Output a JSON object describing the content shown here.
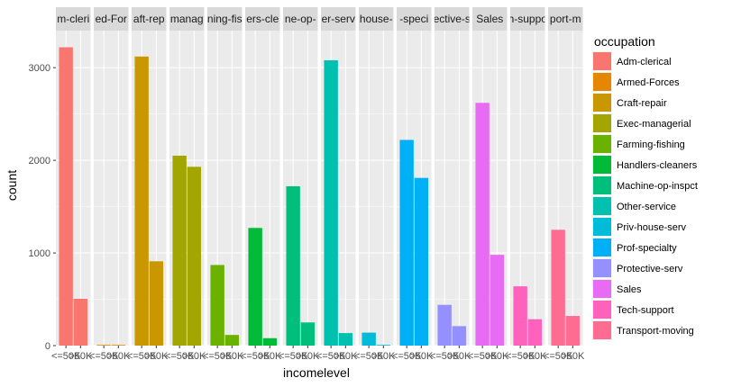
{
  "chart_data": {
    "type": "bar",
    "faceted_by": "occupation",
    "categories": [
      "<=50K",
      ">50K"
    ],
    "x_tick_labels": [
      "<=50K",
      ">50K"
    ],
    "xlabel": "incomelevel",
    "ylabel": "count",
    "ylim": [
      0,
      3400
    ],
    "y_ticks": [
      0,
      1000,
      2000,
      3000
    ],
    "legend_title": "occupation",
    "legend_position": "right",
    "facets": [
      {
        "name": "Adm-clerical",
        "strip": "m-cleri",
        "color": "#F8766D",
        "values": [
          3220,
          505
        ]
      },
      {
        "name": "Armed-Forces",
        "strip": "ed-For",
        "color": "#E58700",
        "values": [
          8,
          1
        ]
      },
      {
        "name": "Craft-repair",
        "strip": "aft-rep",
        "color": "#C99800",
        "values": [
          3120,
          910
        ]
      },
      {
        "name": "Exec-managerial",
        "strip": "manag",
        "color": "#A3A500",
        "values": [
          2050,
          1930
        ]
      },
      {
        "name": "Farming-fishing",
        "strip": "ning-fis",
        "color": "#6BB100",
        "values": [
          870,
          115
        ]
      },
      {
        "name": "Handlers-cleaners",
        "strip": "ers-cle",
        "color": "#00BA38",
        "values": [
          1270,
          80
        ]
      },
      {
        "name": "Machine-op-inspct",
        "strip": "ne-op-",
        "color": "#00BF7D",
        "values": [
          1720,
          250
        ]
      },
      {
        "name": "Other-service",
        "strip": "er-serv",
        "color": "#00C0AF",
        "values": [
          3080,
          135
        ]
      },
      {
        "name": "Priv-house-serv",
        "strip": "house-",
        "color": "#00BCD8",
        "values": [
          140,
          1
        ]
      },
      {
        "name": "Prof-specialty",
        "strip": "-speci",
        "color": "#00B0F6",
        "values": [
          2220,
          1810
        ]
      },
      {
        "name": "Protective-serv",
        "strip": "ective-s",
        "color": "#9590FF",
        "values": [
          440,
          210
        ]
      },
      {
        "name": "Sales",
        "strip": "Sales",
        "color": "#E76BF3",
        "values": [
          2620,
          980
        ]
      },
      {
        "name": "Tech-support",
        "strip": "h-suppo",
        "color": "#FF62BC",
        "values": [
          640,
          285
        ]
      },
      {
        "name": "Transport-moving",
        "strip": "port-m",
        "color": "#FF6C91",
        "values": [
          1250,
          320
        ]
      }
    ]
  }
}
